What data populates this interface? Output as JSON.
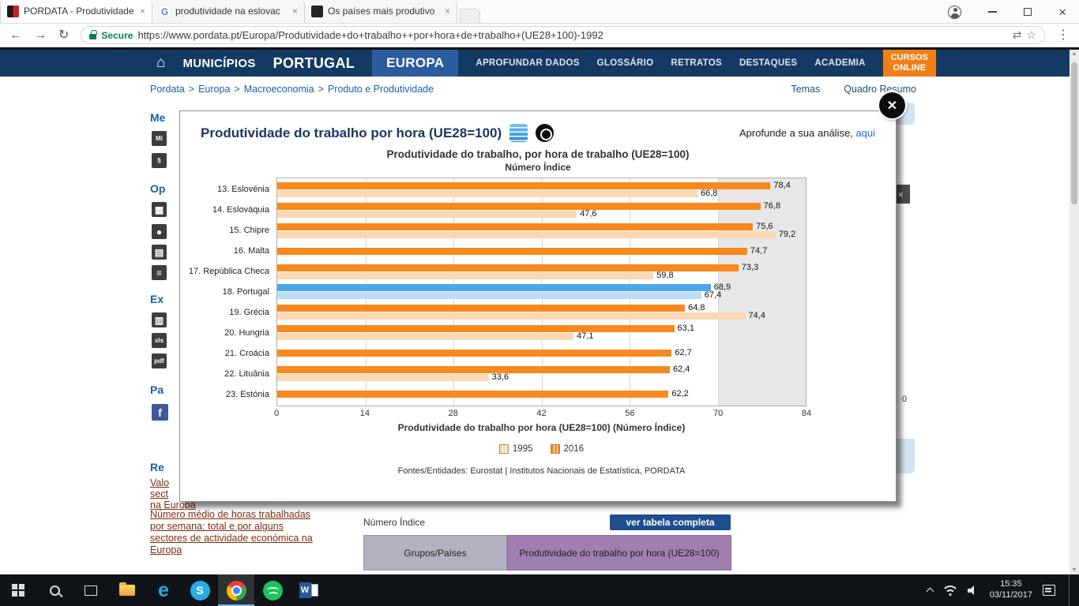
{
  "browser": {
    "tabs": [
      {
        "title": "PORDATA - Produtividade",
        "icon": "pordata",
        "active": true
      },
      {
        "title": "produtividade na eslovac",
        "icon": "google",
        "active": false
      },
      {
        "title": "Os países mais produtivo",
        "icon": "site",
        "active": false
      }
    ],
    "security_label": "Secure",
    "url": "https://www.pordata.pt/Europa/Produtividade+do+trabalho++por+hora+de+trabalho+(UE28+100)-1992"
  },
  "nav": {
    "items": [
      {
        "label": "MUNICÍPIOS"
      },
      {
        "label": "PORTUGAL"
      },
      {
        "label": "EUROPA",
        "active": true
      },
      {
        "label": "APROFUNDAR DADOS"
      },
      {
        "label": "GLOSSÁRIO"
      },
      {
        "label": "RETRATOS"
      },
      {
        "label": "DESTAQUES"
      },
      {
        "label": "ACADEMIA"
      }
    ],
    "cta_line1": "CURSOS",
    "cta_line2": "ONLINE"
  },
  "breadcrumb": {
    "items": [
      "Pordata",
      "Europa",
      "Macroeconomia",
      "Produto e Produtividade"
    ],
    "right_links": [
      "Temas",
      "Quadro Resumo"
    ]
  },
  "modal": {
    "title": "Produtividade do trabalho por hora (UE28=100)",
    "analyse_text": "Aprofunde a sua análise,",
    "analyse_link": "aqui"
  },
  "chart_data": {
    "type": "bar",
    "orientation": "horizontal",
    "title": "Produtividade do trabalho, por hora de trabalho (UE28=100)",
    "subtitle": "Número Índice",
    "xlabel": "Produtividade do trabalho por hora (UE28=100) (Número Índice)",
    "xlim": [
      0,
      84
    ],
    "xticks": [
      0,
      14,
      28,
      42,
      56,
      70,
      84
    ],
    "shaded_band": [
      70,
      84
    ],
    "grid": true,
    "categories": [
      "13. Eslovénia",
      "14. Eslováquia",
      "15. Chipre",
      "16. Malta",
      "17. República Checa",
      "18. Portugal",
      "19. Grécia",
      "20. Hungria",
      "21. Croácia",
      "22. Lituânia",
      "23. Estónia"
    ],
    "series": [
      {
        "name": "2016",
        "color": "#f8891d",
        "highlight_color": "#4da7e8",
        "values": [
          78.4,
          76.8,
          75.6,
          74.7,
          73.3,
          68.9,
          64.8,
          63.1,
          62.7,
          62.4,
          62.2
        ]
      },
      {
        "name": "1995",
        "color": "#fcd9b2",
        "highlight_color": "#bcdcf5",
        "values": [
          66.8,
          47.6,
          79.2,
          null,
          59.8,
          67.4,
          74.4,
          47.1,
          null,
          33.6,
          null
        ]
      }
    ],
    "highlight_category": "18. Portugal",
    "legend": [
      "1995",
      "2016"
    ],
    "legend_position": "bottom",
    "source": "Fontes/Entidades: Eurostat | Institutos Nacionais de Estatística, PORDATA"
  },
  "sidebar": {
    "sections": {
      "s1": "Me",
      "s2": "Op",
      "s3": "Ex",
      "s4": "Pa",
      "s5": "Re"
    },
    "icon_glyphs": {
      "me1": "Mi",
      "me2": "§",
      "op1": "▦",
      "op2": "●",
      "op3": "▤",
      "op4": "≡",
      "ex1": "▥",
      "ex2": "xls",
      "ex3": "pdf",
      "pa1": "f"
    },
    "link_fragments": [
      "Valo",
      "sect",
      "na Europa"
    ],
    "related_link": "Número médio de horas trabalhadas por semana: total e por alguns sectores de actividade económica na Europa"
  },
  "bottom": {
    "numero_indice": "Número Índice",
    "ver_tabela": "ver tabela completa",
    "col_groups": "Grupos/Países",
    "col_productivity": "Produtividade do trabalho por hora (UE28=100)",
    "fragment_zero": "0"
  },
  "taskbar": {
    "time": "15:35",
    "date": "03/11/2017"
  }
}
